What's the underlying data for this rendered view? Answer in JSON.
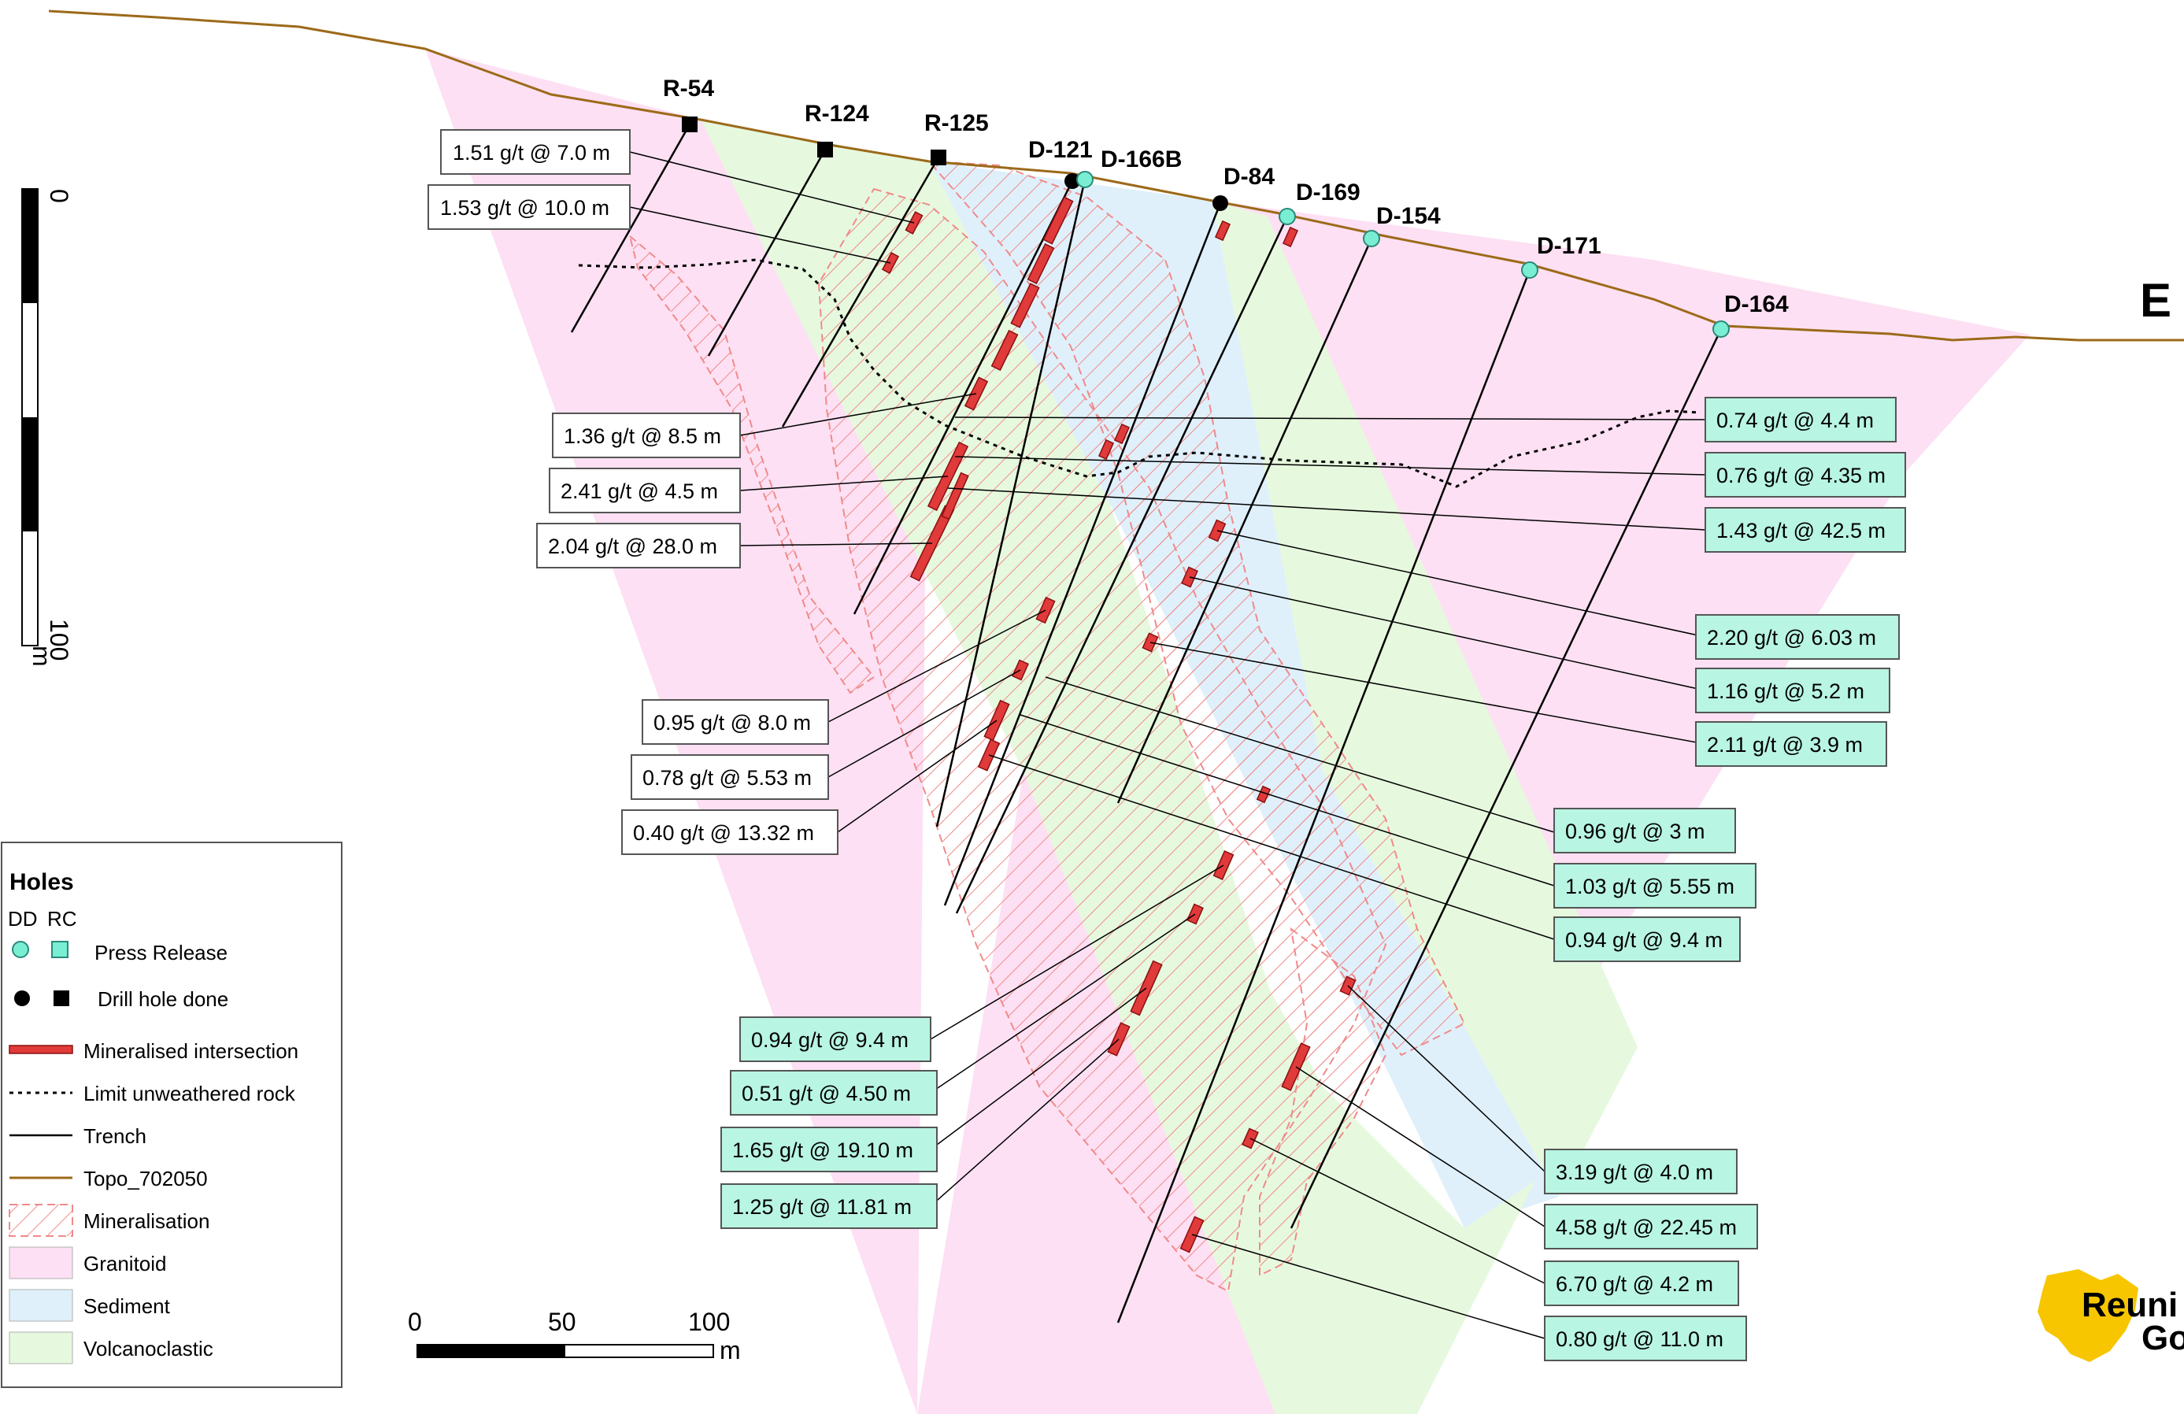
{
  "section": {
    "end_label": "E"
  },
  "colors": {
    "granitoid": "#fde0f3",
    "sediment": "#dff0fb",
    "volcaniclastic": "#e6f9de",
    "topo": "#9c6a1a",
    "mineralised": "#e03a3a",
    "mineralisation_hatch": "#f08a8a",
    "press_release": "#7aeed2",
    "label_fill_release": "#b8f5e2"
  },
  "holes": [
    {
      "name": "R-54",
      "type": "RC",
      "status": "Drill hole done"
    },
    {
      "name": "R-124",
      "type": "RC",
      "status": "Drill hole done"
    },
    {
      "name": "R-125",
      "type": "RC",
      "status": "Drill hole done"
    },
    {
      "name": "D-121",
      "type": "DD",
      "status": "Drill hole done"
    },
    {
      "name": "D-166B",
      "type": "DD",
      "status": "Press Release"
    },
    {
      "name": "D-84",
      "type": "DD",
      "status": "Drill hole done"
    },
    {
      "name": "D-169",
      "type": "DD",
      "status": "Press Release"
    },
    {
      "name": "D-154",
      "type": "DD",
      "status": "Press Release"
    },
    {
      "name": "D-171",
      "type": "DD",
      "status": "Press Release"
    },
    {
      "name": "D-164",
      "type": "DD",
      "status": "Press Release"
    }
  ],
  "intercepts_left": [
    "1.51 g/t @ 7.0 m",
    "1.53 g/t @ 10.0 m",
    "1.36 g/t @ 8.5 m",
    "2.41 g/t @ 4.5 m",
    "2.04 g/t @ 28.0 m",
    "0.95 g/t @ 8.0 m",
    "0.78 g/t @ 5.53 m",
    "0.40 g/t @ 13.32 m"
  ],
  "intercepts_release": [
    "0.74 g/t @ 4.4 m",
    "0.76 g/t @ 4.35 m",
    "1.43 g/t @ 42.5 m",
    "2.20 g/t @ 6.03 m",
    "1.16 g/t @ 5.2 m",
    "2.11 g/t @ 3.9 m",
    "0.96 g/t @ 3 m",
    "1.03 g/t @ 5.55 m",
    "0.94 g/t @ 9.4 m",
    "0.94 g/t @ 9.4 m",
    "0.51 g/t @ 4.50 m",
    "1.65 g/t @ 19.10 m",
    "1.25 g/t @ 11.81 m",
    "3.19 g/t @ 4.0 m",
    "4.58 g/t @ 22.45 m",
    "6.70 g/t @ 4.2 m",
    "0.80 g/t @ 11.0 m"
  ],
  "vertical_scale": {
    "top": "0",
    "bottom": "100",
    "unit": "m"
  },
  "horizontal_scale": {
    "ticks": [
      "0",
      "50",
      "100"
    ],
    "unit": "m"
  },
  "legend": {
    "title": "Holes",
    "col_dd": "DD",
    "col_rc": "RC",
    "press_release": "Press Release",
    "drill_done": "Drill hole done",
    "mineralised_intersection": "Mineralised intersection",
    "limit_unweathered": "Limit unweathered rock",
    "trench": "Trench",
    "topo": "Topo_702050",
    "mineralisation": "Mineralisation",
    "granitoid": "Granitoid",
    "sediment": "Sediment",
    "volcanoclastic": "Volcanoclastic"
  },
  "logo": {
    "line1": "Reuni",
    "line2": "Go"
  }
}
